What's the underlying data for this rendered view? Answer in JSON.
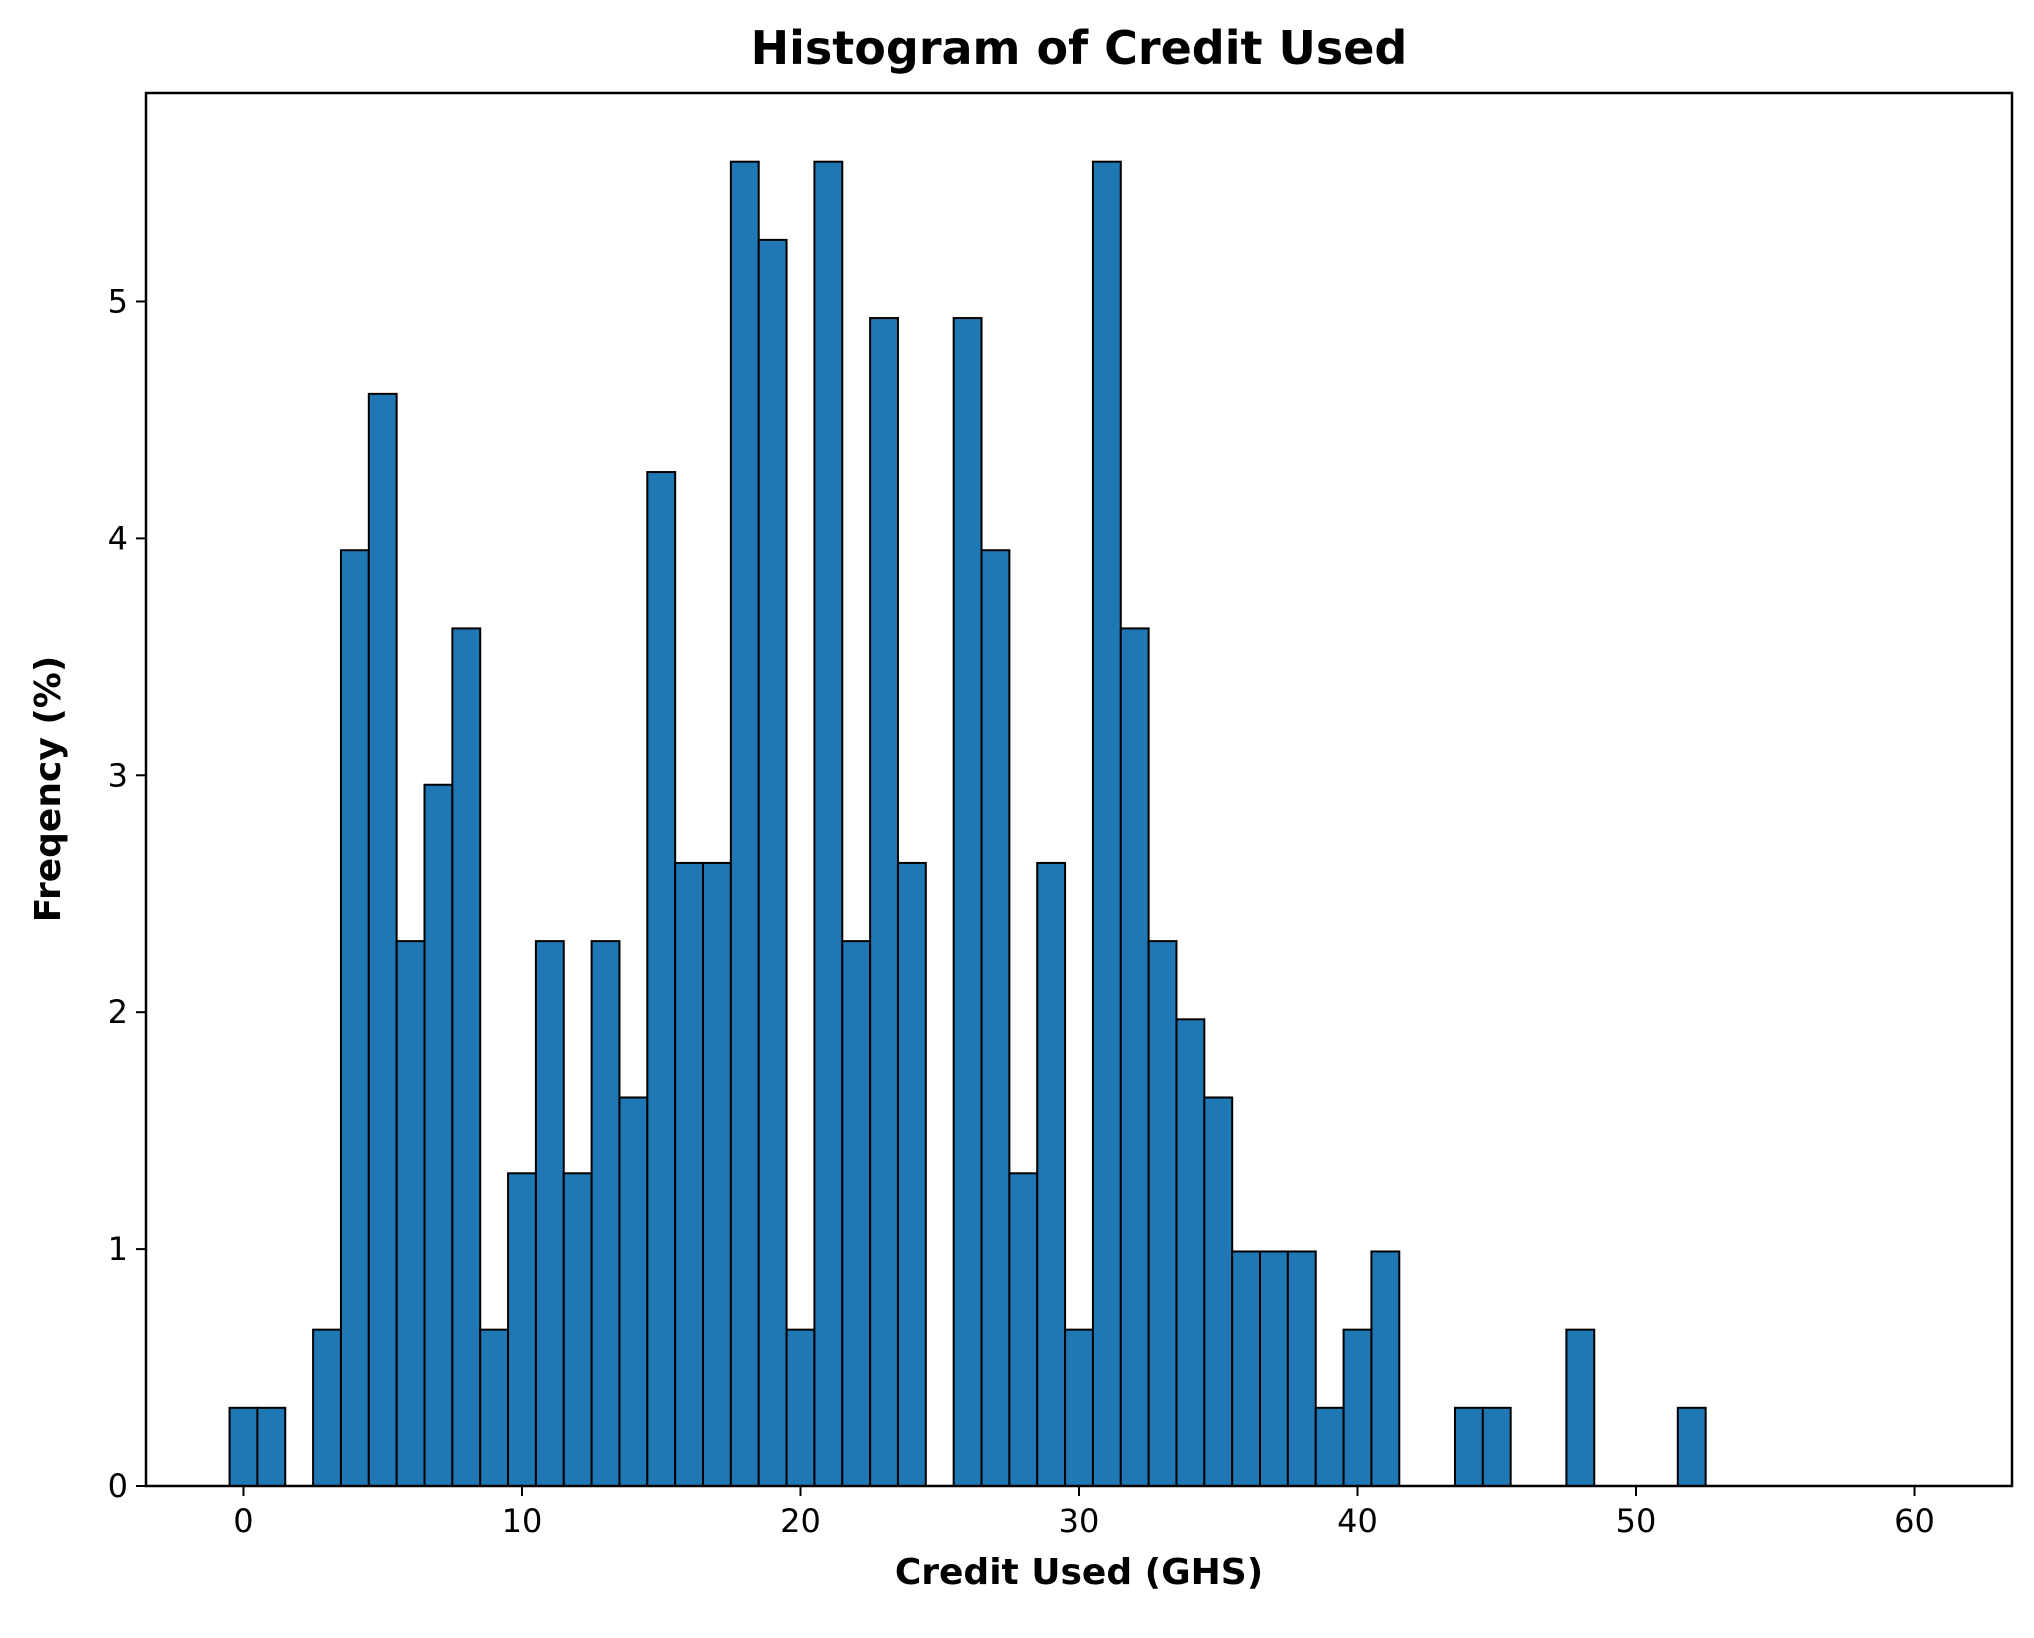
{
  "chart_data": {
    "type": "bar",
    "title": "Histogram of Credit Used",
    "xlabel": "Credit Used (GHS)",
    "ylabel": "Freqency (%)",
    "xlim": [
      -3.5,
      63.5
    ],
    "ylim": [
      0,
      5.88
    ],
    "xticks": [
      0,
      10,
      20,
      30,
      40,
      50,
      60
    ],
    "yticks": [
      0,
      1,
      2,
      3,
      4,
      5
    ],
    "grid": false,
    "bin_width": 1,
    "bins": [
      {
        "x": 0,
        "value": 0.33
      },
      {
        "x": 1,
        "value": 0.33
      },
      {
        "x": 2,
        "value": 0
      },
      {
        "x": 3,
        "value": 0.66
      },
      {
        "x": 4,
        "value": 3.95
      },
      {
        "x": 5,
        "value": 4.61
      },
      {
        "x": 6,
        "value": 2.3
      },
      {
        "x": 7,
        "value": 2.96
      },
      {
        "x": 8,
        "value": 3.62
      },
      {
        "x": 9,
        "value": 0.66
      },
      {
        "x": 10,
        "value": 1.32
      },
      {
        "x": 11,
        "value": 2.3
      },
      {
        "x": 12,
        "value": 1.32
      },
      {
        "x": 13,
        "value": 2.3
      },
      {
        "x": 14,
        "value": 1.64
      },
      {
        "x": 15,
        "value": 4.28
      },
      {
        "x": 16,
        "value": 2.63
      },
      {
        "x": 17,
        "value": 2.63
      },
      {
        "x": 18,
        "value": 5.59
      },
      {
        "x": 19,
        "value": 5.26
      },
      {
        "x": 20,
        "value": 0.66
      },
      {
        "x": 21,
        "value": 5.59
      },
      {
        "x": 22,
        "value": 2.3
      },
      {
        "x": 23,
        "value": 4.93
      },
      {
        "x": 24,
        "value": 2.63
      },
      {
        "x": 25,
        "value": 0
      },
      {
        "x": 26,
        "value": 4.93
      },
      {
        "x": 27,
        "value": 3.95
      },
      {
        "x": 28,
        "value": 1.32
      },
      {
        "x": 29,
        "value": 2.63
      },
      {
        "x": 30,
        "value": 0.66
      },
      {
        "x": 31,
        "value": 5.59
      },
      {
        "x": 32,
        "value": 3.62
      },
      {
        "x": 33,
        "value": 2.3
      },
      {
        "x": 34,
        "value": 1.97
      },
      {
        "x": 35,
        "value": 1.64
      },
      {
        "x": 36,
        "value": 0.99
      },
      {
        "x": 37,
        "value": 0.99
      },
      {
        "x": 38,
        "value": 0.99
      },
      {
        "x": 39,
        "value": 0.33
      },
      {
        "x": 40,
        "value": 0.66
      },
      {
        "x": 41,
        "value": 0.99
      },
      {
        "x": 42,
        "value": 0
      },
      {
        "x": 43,
        "value": 0
      },
      {
        "x": 44,
        "value": 0.33
      },
      {
        "x": 45,
        "value": 0.33
      },
      {
        "x": 46,
        "value": 0
      },
      {
        "x": 47,
        "value": 0
      },
      {
        "x": 48,
        "value": 0.66
      },
      {
        "x": 49,
        "value": 0
      },
      {
        "x": 50,
        "value": 0
      },
      {
        "x": 51,
        "value": 0
      },
      {
        "x": 52,
        "value": 0.33
      }
    ],
    "bar_color": "#1f77b4",
    "edge_color": "#000000"
  }
}
